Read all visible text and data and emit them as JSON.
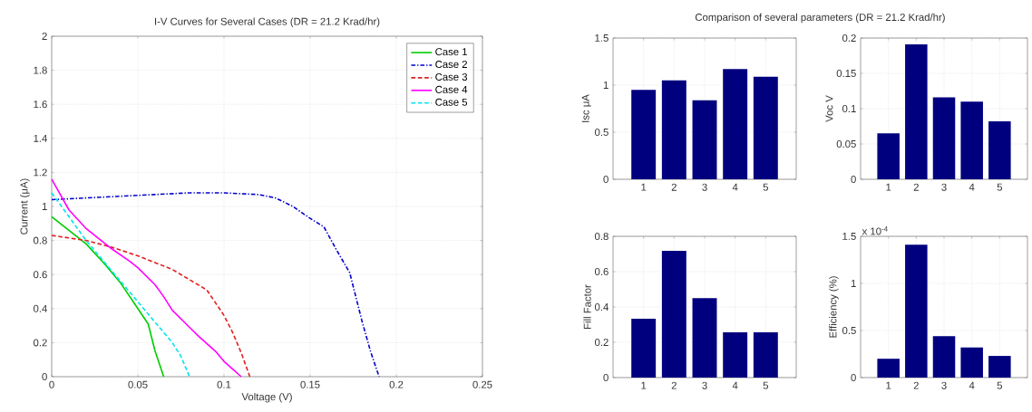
{
  "chart_data": [
    {
      "type": "line",
      "title": "I-V Curves for Several Cases  (DR = 21.2 Krad/hr)",
      "xlabel": "Voltage (V)",
      "ylabel": "Current (μA)",
      "xlim": [
        0,
        0.25
      ],
      "ylim": [
        0,
        2
      ],
      "xticks": [
        0,
        0.05,
        0.1,
        0.15,
        0.2,
        0.25
      ],
      "yticks": [
        0,
        0.2,
        0.4,
        0.6,
        0.8,
        1,
        1.2,
        1.4,
        1.6,
        1.8,
        2
      ],
      "grid": true,
      "legend": "top right",
      "series": [
        {
          "name": "Case 1",
          "color": "#00cc00",
          "line_style": "solid",
          "x": [
            0,
            0.01,
            0.02,
            0.03,
            0.04,
            0.05,
            0.056,
            0.06,
            0.065
          ],
          "values": [
            0.94,
            0.86,
            0.78,
            0.67,
            0.55,
            0.4,
            0.31,
            0.15,
            0
          ]
        },
        {
          "name": "Case 2",
          "color": "#0000cc",
          "line_style": "dashdot",
          "x": [
            0,
            0.02,
            0.04,
            0.06,
            0.08,
            0.1,
            0.12,
            0.13,
            0.14,
            0.15,
            0.158,
            0.165,
            0.173,
            0.18,
            0.185,
            0.19
          ],
          "values": [
            1.04,
            1.05,
            1.06,
            1.07,
            1.08,
            1.08,
            1.07,
            1.05,
            1.0,
            0.93,
            0.88,
            0.75,
            0.61,
            0.33,
            0.15,
            0
          ]
        },
        {
          "name": "Case 3",
          "color": "#e02020",
          "line_style": "dashed",
          "x": [
            0,
            0.02,
            0.035,
            0.05,
            0.06,
            0.07,
            0.08,
            0.09,
            0.1,
            0.105,
            0.11,
            0.115
          ],
          "values": [
            0.83,
            0.8,
            0.76,
            0.71,
            0.67,
            0.63,
            0.57,
            0.51,
            0.36,
            0.26,
            0.14,
            0
          ]
        },
        {
          "name": "Case 4",
          "color": "#ff00ff",
          "line_style": "solid",
          "x": [
            0,
            0.01,
            0.02,
            0.035,
            0.045,
            0.05,
            0.06,
            0.065,
            0.07,
            0.08,
            0.085,
            0.095,
            0.1,
            0.11
          ],
          "values": [
            1.16,
            0.98,
            0.87,
            0.75,
            0.68,
            0.64,
            0.54,
            0.47,
            0.39,
            0.29,
            0.24,
            0.15,
            0.09,
            0
          ]
        },
        {
          "name": "Case 5",
          "color": "#00e5ee",
          "line_style": "dashed",
          "x": [
            0,
            0.01,
            0.02,
            0.03,
            0.04,
            0.05,
            0.06,
            0.07,
            0.075,
            0.08
          ],
          "values": [
            1.08,
            0.94,
            0.8,
            0.68,
            0.56,
            0.44,
            0.32,
            0.2,
            0.12,
            0
          ]
        }
      ]
    },
    {
      "type": "bar",
      "title": "Comparison of several parameters (DR = 21.2 Krad/hr)",
      "ylabel": "Isc  μA",
      "categories": [
        "1",
        "2",
        "3",
        "4",
        "5"
      ],
      "values": [
        0.95,
        1.05,
        0.84,
        1.17,
        1.09
      ],
      "color": "#00007f",
      "ylim": [
        0,
        1.5
      ],
      "yticks": [
        0,
        0.5,
        1,
        1.5
      ],
      "grid": true
    },
    {
      "type": "bar",
      "ylabel": "Voc  V",
      "categories": [
        "1",
        "2",
        "3",
        "4",
        "5"
      ],
      "values": [
        0.065,
        0.191,
        0.116,
        0.11,
        0.082
      ],
      "color": "#00007f",
      "ylim": [
        0,
        0.2
      ],
      "yticks": [
        0,
        0.05,
        0.1,
        0.15,
        0.2
      ],
      "grid": true
    },
    {
      "type": "bar",
      "ylabel": "Fill Factor",
      "categories": [
        "1",
        "2",
        "3",
        "4",
        "5"
      ],
      "values": [
        0.333,
        0.718,
        0.45,
        0.257,
        0.257
      ],
      "color": "#00007f",
      "ylim": [
        0,
        0.8
      ],
      "yticks": [
        0,
        0.2,
        0.4,
        0.6,
        0.8
      ],
      "grid": true
    },
    {
      "type": "bar",
      "ylabel": "Efficiency (%)",
      "categories": [
        "1",
        "2",
        "3",
        "4",
        "5"
      ],
      "values": [
        0.2,
        1.41,
        0.44,
        0.32,
        0.23
      ],
      "color": "#00007f",
      "ylim": [
        0,
        1.5
      ],
      "yticks": [
        0,
        0.5,
        1,
        1.5
      ],
      "grid": true,
      "annotations": [
        "x 10$^{-4}$"
      ]
    }
  ]
}
